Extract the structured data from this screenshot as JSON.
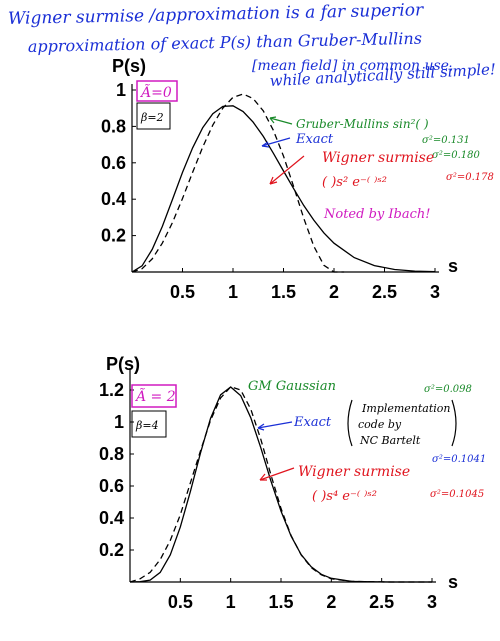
{
  "annotation_top": {
    "line1": "Wigner surmise /approximation is a far superior",
    "line2": "approximation of exact  P(s)  than Gruber-Mullins",
    "line3": "[mean field] in common use,",
    "line4": "while analytically still simple!"
  },
  "colors": {
    "blue": "#1a2fd6",
    "green": "#1a8a2a",
    "red": "#e0141e",
    "magenta": "#d01ac0",
    "black": "#000000"
  },
  "chart_data": [
    {
      "type": "line",
      "ylabel": "P(s)",
      "xlabel": "s",
      "xlim": [
        0,
        3
      ],
      "ylim": [
        0,
        1
      ],
      "xticks": [
        "0.5",
        "1",
        "1.5",
        "2",
        "2.5",
        "3"
      ],
      "yticks": [
        "0.2",
        "0.4",
        "0.6",
        "0.8",
        "1"
      ],
      "box_labels": {
        "atilde": "Ã=0",
        "beta": "β=2"
      },
      "series": [
        {
          "style": "solid",
          "x": [
            0,
            0.1,
            0.2,
            0.3,
            0.4,
            0.5,
            0.6,
            0.7,
            0.8,
            0.9,
            1.0,
            1.1,
            1.2,
            1.3,
            1.4,
            1.5,
            1.6,
            1.7,
            1.8,
            1.9,
            2.0,
            2.2,
            2.4,
            2.6,
            2.8,
            3.0
          ],
          "y": [
            0,
            0.034,
            0.124,
            0.25,
            0.398,
            0.547,
            0.682,
            0.793,
            0.87,
            0.91,
            0.913,
            0.882,
            0.823,
            0.745,
            0.652,
            0.555,
            0.458,
            0.366,
            0.285,
            0.215,
            0.158,
            0.079,
            0.035,
            0.014,
            0.005,
            0.002
          ]
        },
        {
          "style": "dashed",
          "x": [
            0,
            0.1,
            0.2,
            0.3,
            0.4,
            0.5,
            0.6,
            0.7,
            0.8,
            0.9,
            1.0,
            1.1,
            1.2,
            1.3,
            1.4,
            1.5,
            1.6,
            1.7,
            1.8,
            1.9,
            2.0,
            2.1
          ],
          "y": [
            0,
            0.018,
            0.072,
            0.158,
            0.271,
            0.404,
            0.547,
            0.686,
            0.807,
            0.901,
            0.96,
            0.978,
            0.953,
            0.885,
            0.778,
            0.637,
            0.47,
            0.296,
            0.142,
            0.037,
            0.0,
            0.0
          ]
        }
      ],
      "annotations": {
        "gruber_mullins": "Gruber-Mullins  sin²( )",
        "gm_sigma": "σ²=0.131",
        "exact_sigma": "σ²=0.180",
        "exact": "Exact",
        "wigner": "Wigner surmise",
        "wigner_formula": "( )s² e⁻⁽ ⁾ˢ²",
        "wigner_sigma": "σ²=0.178",
        "note": "Noted by Ibach!"
      }
    },
    {
      "type": "line",
      "ylabel": "P(s)",
      "xlabel": "s",
      "xlim": [
        0,
        3
      ],
      "ylim": [
        0,
        1.3
      ],
      "xticks": [
        "0.5",
        "1",
        "1.5",
        "2",
        "2.5",
        "3"
      ],
      "yticks": [
        "0.2",
        "0.4",
        "0.6",
        "0.8",
        "1",
        "1.2"
      ],
      "box_labels": {
        "atilde": "Ã = 2",
        "beta": "β=4"
      },
      "series": [
        {
          "style": "solid",
          "x": [
            0,
            0.1,
            0.2,
            0.3,
            0.4,
            0.5,
            0.6,
            0.7,
            0.8,
            0.9,
            1.0,
            1.1,
            1.2,
            1.3,
            1.4,
            1.5,
            1.6,
            1.7,
            1.8,
            1.9,
            2.0,
            2.2,
            2.4,
            2.6,
            2.8,
            3.0
          ],
          "y": [
            0,
            0.002,
            0.012,
            0.06,
            0.17,
            0.343,
            0.566,
            0.807,
            1.022,
            1.17,
            1.219,
            1.165,
            1.026,
            0.837,
            0.632,
            0.443,
            0.287,
            0.172,
            0.095,
            0.048,
            0.023,
            0.004,
            0.001,
            0,
            0,
            0
          ]
        },
        {
          "style": "dashed",
          "x": [
            0,
            0.1,
            0.2,
            0.3,
            0.4,
            0.5,
            0.6,
            0.7,
            0.8,
            0.9,
            1.0,
            1.1,
            1.2,
            1.3,
            1.4,
            1.5,
            1.6,
            1.7,
            1.8,
            1.9,
            2.0,
            2.2,
            2.4,
            2.6,
            2.8,
            3.0
          ],
          "y": [
            0.0,
            0.02,
            0.06,
            0.14,
            0.26,
            0.42,
            0.62,
            0.82,
            1.01,
            1.15,
            1.22,
            1.2,
            1.08,
            0.89,
            0.67,
            0.46,
            0.29,
            0.17,
            0.09,
            0.045,
            0.02,
            0.004,
            0.001,
            0,
            0,
            0
          ]
        }
      ],
      "annotations": {
        "gm_gaussian": "GM Gaussian",
        "gm_sigma": "σ²=0.098",
        "exact": "Exact",
        "impl1": "Implementation",
        "impl2": "code by",
        "impl3": "NC Bartelt",
        "exact_sigma": "σ²=0.1041",
        "wigner": "Wigner surmise",
        "wigner_formula": "( )s⁴ e⁻⁽ ⁾ˢ²",
        "wigner_sigma": "σ²=0.1045"
      }
    }
  ]
}
